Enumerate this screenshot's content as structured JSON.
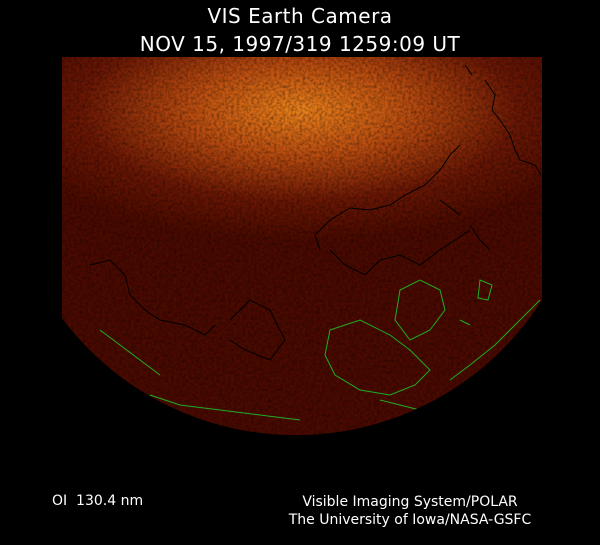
{
  "header": {
    "title": "VIS Earth Camera",
    "timestamp": "NOV 15, 1997/319 1259:09 UT"
  },
  "footer": {
    "wavelength": "OI  130.4 nm",
    "instrument": "Visible Imaging System/POLAR",
    "institution": "The University of Iowa/NASA-GSFC"
  },
  "colors": {
    "background": "#000000",
    "earth_disk": "#4a0a00",
    "aurora_glow": "#ff9a20",
    "coastline_day": "#000000",
    "coastline_night": "#1fae1f"
  }
}
